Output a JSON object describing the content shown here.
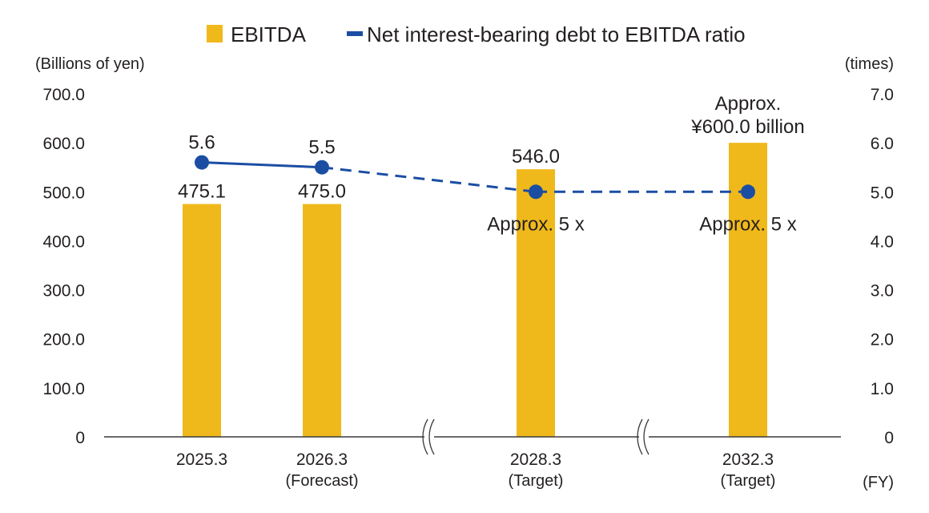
{
  "chart_data": {
    "type": "bar",
    "title": "",
    "legend": {
      "placement": "top",
      "entries": [
        {
          "name": "EBITDA",
          "marker": "square",
          "color": "#F0B91B"
        },
        {
          "name": "Net interest-bearing debt to EBITDA ratio",
          "marker": "line",
          "color": "#1B4EA3"
        }
      ]
    },
    "left_axis": {
      "label": "(Billions of yen)",
      "range": [
        0,
        700
      ],
      "ticks": [
        "0",
        "100.0",
        "200.0",
        "300.0",
        "400.0",
        "500.0",
        "600.0",
        "700.0"
      ]
    },
    "right_axis": {
      "label": "(times)",
      "range": [
        0,
        7
      ],
      "ticks": [
        "0",
        "1.0",
        "2.0",
        "3.0",
        "4.0",
        "5.0",
        "6.0",
        "7.0"
      ]
    },
    "xlabel": "(FY)",
    "categories": [
      {
        "label": "2025.3",
        "sub": ""
      },
      {
        "label": "2026.3",
        "sub": "(Forecast)"
      },
      {
        "label": "2028.3",
        "sub": "(Target)"
      },
      {
        "label": "2032.3",
        "sub": "(Target)"
      }
    ],
    "axis_breaks_after_category_index": [
      1,
      2
    ],
    "series": [
      {
        "name": "EBITDA",
        "type": "bar",
        "axis": "left",
        "color": "#F0B91B",
        "values": [
          475.1,
          475.0,
          546.0,
          600.0
        ],
        "labels": [
          [
            "475.1"
          ],
          [
            "475.0"
          ],
          [
            "546.0"
          ],
          [
            "Approx.",
            "¥600.0 billion"
          ]
        ]
      },
      {
        "name": "Net interest-bearing debt to EBITDA ratio",
        "type": "line",
        "axis": "right",
        "color": "#1B4EA3",
        "values": [
          5.6,
          5.5,
          5.0,
          5.0
        ],
        "labels": [
          "5.6",
          "5.5",
          "Approx. 5 x",
          "Approx. 5 x"
        ],
        "line_style": [
          "solid",
          "dashed",
          "dashed"
        ]
      }
    ],
    "grid": false
  }
}
